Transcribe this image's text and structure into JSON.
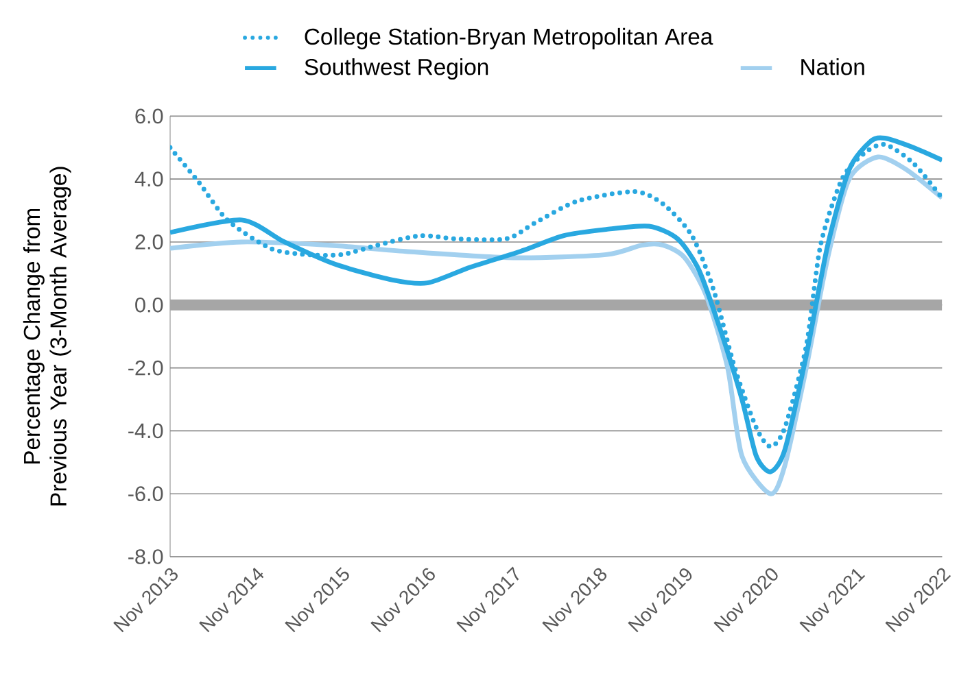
{
  "chart_data": {
    "type": "line",
    "ylabel": "Percentage Change from Previous Year (3-Month Average)",
    "xlim": [
      "2013-11",
      "2022-11"
    ],
    "xticks": [
      {
        "value": "2013-11",
        "label": "Nov 2013"
      },
      {
        "value": "2014-11",
        "label": "Nov 2014"
      },
      {
        "value": "2015-11",
        "label": "Nov 2015"
      },
      {
        "value": "2016-11",
        "label": "Nov 2016"
      },
      {
        "value": "2017-11",
        "label": "Nov 2017"
      },
      {
        "value": "2018-11",
        "label": "Nov 2018"
      },
      {
        "value": "2019-11",
        "label": "Nov 2019"
      },
      {
        "value": "2020-11",
        "label": "Nov 2020"
      },
      {
        "value": "2021-11",
        "label": "Nov 2021"
      },
      {
        "value": "2022-11",
        "label": "Nov 2022"
      }
    ],
    "ylim": [
      -8,
      6
    ],
    "yticks": [
      {
        "value": -8,
        "label": "-8.0"
      },
      {
        "value": -6,
        "label": "-6.0"
      },
      {
        "value": -4,
        "label": "-4.0"
      },
      {
        "value": -2,
        "label": "-2.0"
      },
      {
        "value": 0,
        "label": "0.0"
      },
      {
        "value": 2,
        "label": "2.0"
      },
      {
        "value": 4,
        "label": "4.0"
      },
      {
        "value": 6,
        "label": "6.0"
      }
    ],
    "grid": "y",
    "legend": "top",
    "marker": "none",
    "ref_lines": [
      {
        "axis": "y",
        "value": 0,
        "color": "#a6a6a6"
      }
    ],
    "series": [
      {
        "name": "College Station-Bryan Metropolitan Area",
        "color": "#29a8e0",
        "line_style": "dotted",
        "x": [
          "2013-11",
          "2014-03",
          "2014-07",
          "2015-01",
          "2015-06",
          "2015-11",
          "2016-04",
          "2016-10",
          "2017-03",
          "2017-10",
          "2018-02",
          "2018-08",
          "2019-04",
          "2019-08",
          "2019-12",
          "2020-03",
          "2020-06",
          "2020-09",
          "2020-11",
          "2021-01",
          "2021-04",
          "2021-06",
          "2021-09",
          "2021-12",
          "2022-03",
          "2022-07",
          "2022-11"
        ],
        "values": [
          5.0,
          3.9,
          2.7,
          1.8,
          1.6,
          1.6,
          1.9,
          2.2,
          2.1,
          2.1,
          2.6,
          3.3,
          3.6,
          3.2,
          2.2,
          0.5,
          -2.0,
          -3.9,
          -4.5,
          -3.9,
          -1.3,
          1.9,
          4.0,
          4.8,
          5.1,
          4.5,
          3.4
        ]
      },
      {
        "name": "Southwest Region",
        "color": "#29a8e0",
        "line_style": "solid",
        "x": [
          "2013-11",
          "2014-09",
          "2015-03",
          "2015-10",
          "2016-06",
          "2016-11",
          "2017-05",
          "2017-12",
          "2018-06",
          "2018-12",
          "2019-06",
          "2019-10",
          "2020-01",
          "2020-04",
          "2020-07",
          "2020-09",
          "2020-11",
          "2021-01",
          "2021-04",
          "2021-07",
          "2021-10",
          "2022-01",
          "2022-03",
          "2022-07",
          "2022-11"
        ],
        "values": [
          2.3,
          2.7,
          2.0,
          1.3,
          0.8,
          0.7,
          1.2,
          1.7,
          2.2,
          2.4,
          2.5,
          2.1,
          1.1,
          -0.8,
          -3.0,
          -4.8,
          -5.3,
          -4.6,
          -1.6,
          1.9,
          4.3,
          5.2,
          5.3,
          5.0,
          4.6
        ]
      },
      {
        "name": "Nation",
        "color": "#a2d0ef",
        "line_style": "solid",
        "x": [
          "2013-11",
          "2014-09",
          "2015-09",
          "2016-08",
          "2017-11",
          "2018-12",
          "2019-05",
          "2019-08",
          "2019-11",
          "2020-02",
          "2020-05",
          "2020-07",
          "2020-11",
          "2021-01",
          "2021-04",
          "2021-07",
          "2021-10",
          "2022-02",
          "2022-06",
          "2022-11"
        ],
        "values": [
          1.8,
          2.0,
          1.9,
          1.7,
          1.5,
          1.6,
          1.9,
          1.9,
          1.5,
          0.3,
          -2.0,
          -4.8,
          -6.0,
          -5.1,
          -2.0,
          1.5,
          4.0,
          4.7,
          4.3,
          3.4
        ]
      }
    ]
  }
}
